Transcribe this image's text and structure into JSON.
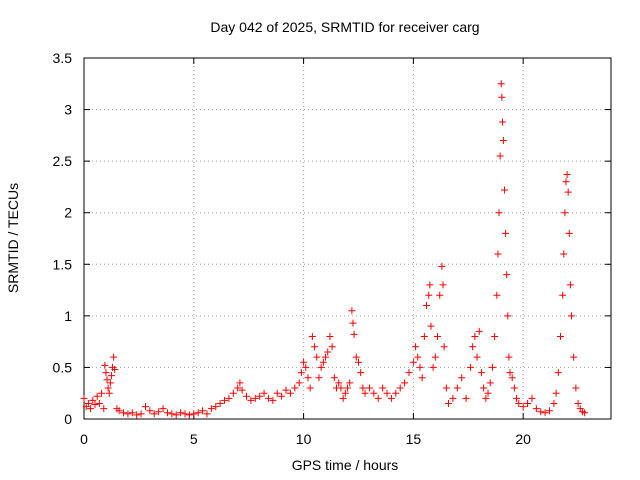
{
  "chart_data": {
    "type": "scatter",
    "title": "Day 042 of 2025, SRMTID for receiver carg",
    "xlabel": "GPS time / hours",
    "ylabel": "SRMTID / TECUs",
    "xlim": [
      0,
      24
    ],
    "ylim": [
      0,
      3.5
    ],
    "x_ticks": [
      {
        "value": 0,
        "label": "0"
      },
      {
        "value": 5,
        "label": "5"
      },
      {
        "value": 10,
        "label": "10"
      },
      {
        "value": 15,
        "label": "15"
      },
      {
        "value": 20,
        "label": "20"
      }
    ],
    "y_ticks": [
      {
        "value": 0,
        "label": "0"
      },
      {
        "value": 0.5,
        "label": "0.5"
      },
      {
        "value": 1,
        "label": "1"
      },
      {
        "value": 1.5,
        "label": "1.5"
      },
      {
        "value": 2,
        "label": "2"
      },
      {
        "value": 2.5,
        "label": "2.5"
      },
      {
        "value": 3,
        "label": "3"
      },
      {
        "value": 3.5,
        "label": "3.5"
      }
    ],
    "grid": true,
    "marker": "plus",
    "marker_color": "#ff0000",
    "series": [
      {
        "name": "carg",
        "points": [
          [
            0.0,
            0.2
          ],
          [
            0.1,
            0.12
          ],
          [
            0.2,
            0.15
          ],
          [
            0.3,
            0.1
          ],
          [
            0.4,
            0.18
          ],
          [
            0.5,
            0.14
          ],
          [
            0.6,
            0.22
          ],
          [
            0.7,
            0.15
          ],
          [
            0.8,
            0.25
          ],
          [
            0.9,
            0.1
          ],
          [
            0.95,
            0.52
          ],
          [
            1.0,
            0.45
          ],
          [
            1.05,
            0.38
          ],
          [
            1.1,
            0.3
          ],
          [
            1.15,
            0.25
          ],
          [
            1.2,
            0.35
          ],
          [
            1.25,
            0.42
          ],
          [
            1.3,
            0.5
          ],
          [
            1.35,
            0.6
          ],
          [
            1.4,
            0.48
          ],
          [
            1.5,
            0.1
          ],
          [
            1.6,
            0.08
          ],
          [
            1.8,
            0.06
          ],
          [
            2.0,
            0.05
          ],
          [
            2.2,
            0.06
          ],
          [
            2.4,
            0.04
          ],
          [
            2.6,
            0.05
          ],
          [
            2.8,
            0.12
          ],
          [
            3.0,
            0.08
          ],
          [
            3.2,
            0.05
          ],
          [
            3.4,
            0.07
          ],
          [
            3.6,
            0.1
          ],
          [
            3.8,
            0.06
          ],
          [
            4.0,
            0.05
          ],
          [
            4.2,
            0.04
          ],
          [
            4.4,
            0.06
          ],
          [
            4.6,
            0.05
          ],
          [
            4.8,
            0.04
          ],
          [
            5.0,
            0.05
          ],
          [
            5.2,
            0.06
          ],
          [
            5.4,
            0.08
          ],
          [
            5.6,
            0.05
          ],
          [
            5.8,
            0.1
          ],
          [
            6.0,
            0.12
          ],
          [
            6.2,
            0.15
          ],
          [
            6.4,
            0.18
          ],
          [
            6.6,
            0.2
          ],
          [
            6.8,
            0.25
          ],
          [
            7.0,
            0.3
          ],
          [
            7.1,
            0.35
          ],
          [
            7.2,
            0.28
          ],
          [
            7.4,
            0.22
          ],
          [
            7.6,
            0.18
          ],
          [
            7.8,
            0.2
          ],
          [
            8.0,
            0.22
          ],
          [
            8.2,
            0.25
          ],
          [
            8.4,
            0.2
          ],
          [
            8.6,
            0.18
          ],
          [
            8.8,
            0.25
          ],
          [
            9.0,
            0.22
          ],
          [
            9.2,
            0.28
          ],
          [
            9.4,
            0.25
          ],
          [
            9.6,
            0.3
          ],
          [
            9.8,
            0.35
          ],
          [
            9.9,
            0.45
          ],
          [
            10.0,
            0.55
          ],
          [
            10.1,
            0.5
          ],
          [
            10.2,
            0.4
          ],
          [
            10.3,
            0.3
          ],
          [
            10.4,
            0.8
          ],
          [
            10.5,
            0.7
          ],
          [
            10.6,
            0.6
          ],
          [
            10.7,
            0.4
          ],
          [
            10.8,
            0.5
          ],
          [
            10.9,
            0.55
          ],
          [
            11.0,
            0.6
          ],
          [
            11.1,
            0.65
          ],
          [
            11.2,
            0.8
          ],
          [
            11.3,
            0.7
          ],
          [
            11.4,
            0.4
          ],
          [
            11.5,
            0.3
          ],
          [
            11.6,
            0.35
          ],
          [
            11.7,
            0.3
          ],
          [
            11.8,
            0.2
          ],
          [
            11.9,
            0.25
          ],
          [
            12.0,
            0.3
          ],
          [
            12.1,
            0.35
          ],
          [
            12.2,
            1.05
          ],
          [
            12.25,
            0.93
          ],
          [
            12.3,
            0.82
          ],
          [
            12.4,
            0.6
          ],
          [
            12.5,
            0.55
          ],
          [
            12.6,
            0.45
          ],
          [
            12.7,
            0.3
          ],
          [
            12.8,
            0.25
          ],
          [
            13.0,
            0.3
          ],
          [
            13.2,
            0.25
          ],
          [
            13.4,
            0.2
          ],
          [
            13.6,
            0.3
          ],
          [
            13.8,
            0.25
          ],
          [
            14.0,
            0.2
          ],
          [
            14.2,
            0.25
          ],
          [
            14.4,
            0.3
          ],
          [
            14.6,
            0.35
          ],
          [
            14.8,
            0.45
          ],
          [
            15.0,
            0.55
          ],
          [
            15.1,
            0.7
          ],
          [
            15.2,
            0.6
          ],
          [
            15.3,
            0.5
          ],
          [
            15.4,
            0.4
          ],
          [
            15.5,
            0.8
          ],
          [
            15.6,
            1.1
          ],
          [
            15.7,
            1.2
          ],
          [
            15.75,
            1.3
          ],
          [
            15.8,
            0.9
          ],
          [
            15.9,
            0.5
          ],
          [
            16.0,
            0.6
          ],
          [
            16.1,
            0.8
          ],
          [
            16.2,
            1.2
          ],
          [
            16.3,
            1.48
          ],
          [
            16.35,
            1.3
          ],
          [
            16.4,
            0.7
          ],
          [
            16.5,
            0.3
          ],
          [
            16.6,
            0.15
          ],
          [
            16.8,
            0.2
          ],
          [
            17.0,
            0.3
          ],
          [
            17.2,
            0.4
          ],
          [
            17.4,
            0.2
          ],
          [
            17.6,
            0.5
          ],
          [
            17.7,
            0.7
          ],
          [
            17.8,
            0.8
          ],
          [
            17.9,
            0.6
          ],
          [
            18.0,
            0.85
          ],
          [
            18.1,
            0.45
          ],
          [
            18.2,
            0.3
          ],
          [
            18.3,
            0.2
          ],
          [
            18.4,
            0.25
          ],
          [
            18.5,
            0.35
          ],
          [
            18.6,
            0.5
          ],
          [
            18.7,
            0.8
          ],
          [
            18.8,
            1.2
          ],
          [
            18.85,
            1.6
          ],
          [
            18.9,
            2.0
          ],
          [
            18.95,
            2.55
          ],
          [
            19.0,
            3.25
          ],
          [
            19.03,
            3.12
          ],
          [
            19.06,
            2.88
          ],
          [
            19.1,
            2.7
          ],
          [
            19.15,
            2.22
          ],
          [
            19.2,
            1.8
          ],
          [
            19.25,
            1.4
          ],
          [
            19.3,
            1.0
          ],
          [
            19.35,
            0.6
          ],
          [
            19.4,
            0.45
          ],
          [
            19.5,
            0.4
          ],
          [
            19.6,
            0.3
          ],
          [
            19.7,
            0.2
          ],
          [
            19.8,
            0.15
          ],
          [
            20.0,
            0.12
          ],
          [
            20.2,
            0.15
          ],
          [
            20.4,
            0.2
          ],
          [
            20.6,
            0.1
          ],
          [
            20.8,
            0.07
          ],
          [
            21.0,
            0.06
          ],
          [
            21.2,
            0.08
          ],
          [
            21.4,
            0.15
          ],
          [
            21.5,
            0.25
          ],
          [
            21.6,
            0.45
          ],
          [
            21.7,
            0.8
          ],
          [
            21.8,
            1.2
          ],
          [
            21.85,
            1.6
          ],
          [
            21.9,
            2.0
          ],
          [
            21.95,
            2.3
          ],
          [
            22.0,
            2.37
          ],
          [
            22.05,
            2.2
          ],
          [
            22.1,
            1.8
          ],
          [
            22.15,
            1.3
          ],
          [
            22.2,
            1.0
          ],
          [
            22.3,
            0.6
          ],
          [
            22.4,
            0.3
          ],
          [
            22.5,
            0.15
          ],
          [
            22.6,
            0.1
          ],
          [
            22.7,
            0.07
          ],
          [
            22.8,
            0.06
          ]
        ]
      }
    ]
  }
}
